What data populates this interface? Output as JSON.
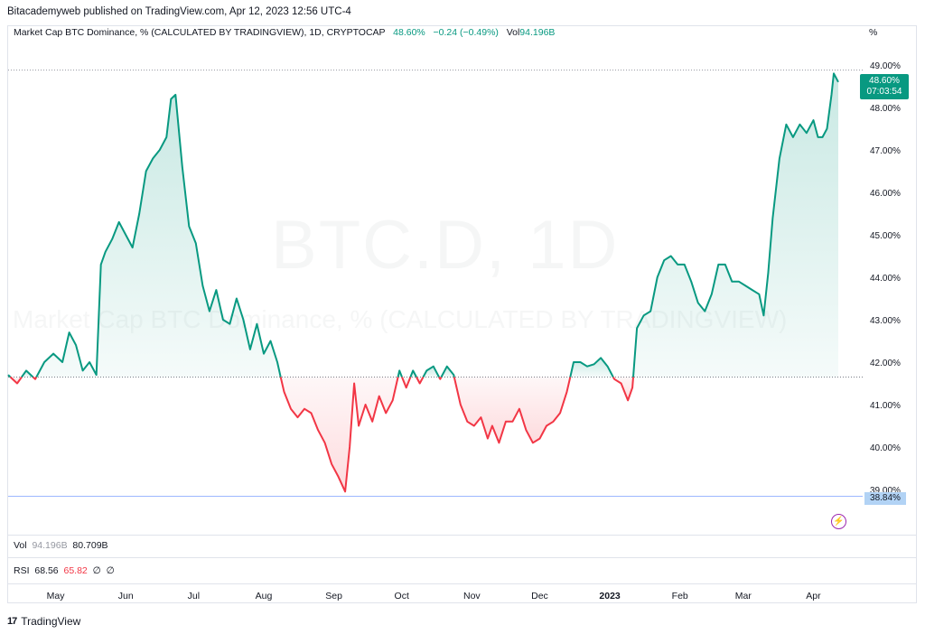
{
  "header": {
    "published": "Bitacademyweb published on TradingView.com, Apr 12, 2023 12:56 UTC-4"
  },
  "legend": {
    "title": "Market Cap BTC Dominance, % (CALCULATED BY TRADINGVIEW), 1D, CRYPTOCAP",
    "last": "48.60%",
    "change": "−0.24 (−0.49%)",
    "vol_label": "Vol",
    "vol_value": "94.196B"
  },
  "unit_label": "%",
  "watermark": {
    "symbol": "BTC.D, 1D",
    "description": "Market Cap BTC Dominance, % (CALCULATED BY TRADINGVIEW)"
  },
  "price_tag": {
    "value": "48.60%",
    "countdown": "07:03:54"
  },
  "low_tag": "38.84%",
  "volume_pane": {
    "label": "Vol",
    "value1": "94.196B",
    "value2": "80.709B"
  },
  "rsi_pane": {
    "label": "RSI",
    "value1": "68.56",
    "value2": "65.82",
    "value3": "∅",
    "value4": "∅"
  },
  "footer": {
    "brand": "TradingView"
  },
  "colors": {
    "up": "#089981",
    "down": "#f23645",
    "baseline": "#787b86"
  },
  "chart_data": {
    "type": "area",
    "baseline_value": 41.65,
    "ylim": [
      38.7,
      49.1
    ],
    "y_ticks": [
      "49.00%",
      "48.00%",
      "47.00%",
      "46.00%",
      "45.00%",
      "44.00%",
      "43.00%",
      "42.00%",
      "41.00%",
      "40.00%",
      "39.00%"
    ],
    "x_ticks": [
      "May",
      "Jun",
      "Jul",
      "Aug",
      "Sep",
      "Oct",
      "Nov",
      "Dec",
      "2023",
      "Feb",
      "Mar",
      "Apr"
    ],
    "x_start": "2022-04-10",
    "x_end": "2023-04-12",
    "points": [
      [
        "2022-04-10",
        41.7
      ],
      [
        "2022-04-14",
        41.5
      ],
      [
        "2022-04-18",
        41.8
      ],
      [
        "2022-04-22",
        41.6
      ],
      [
        "2022-04-26",
        42.0
      ],
      [
        "2022-04-30",
        42.2
      ],
      [
        "2022-05-04",
        42.0
      ],
      [
        "2022-05-07",
        42.7
      ],
      [
        "2022-05-10",
        42.4
      ],
      [
        "2022-05-13",
        41.8
      ],
      [
        "2022-05-16",
        42.0
      ],
      [
        "2022-05-19",
        41.7
      ],
      [
        "2022-05-21",
        44.3
      ],
      [
        "2022-05-23",
        44.6
      ],
      [
        "2022-05-26",
        44.9
      ],
      [
        "2022-05-29",
        45.3
      ],
      [
        "2022-06-01",
        45.0
      ],
      [
        "2022-06-04",
        44.7
      ],
      [
        "2022-06-07",
        45.5
      ],
      [
        "2022-06-10",
        46.5
      ],
      [
        "2022-06-13",
        46.8
      ],
      [
        "2022-06-16",
        47.0
      ],
      [
        "2022-06-19",
        47.3
      ],
      [
        "2022-06-21",
        48.2
      ],
      [
        "2022-06-23",
        48.3
      ],
      [
        "2022-06-26",
        46.6
      ],
      [
        "2022-06-29",
        45.2
      ],
      [
        "2022-07-02",
        44.8
      ],
      [
        "2022-07-05",
        43.8
      ],
      [
        "2022-07-08",
        43.2
      ],
      [
        "2022-07-11",
        43.7
      ],
      [
        "2022-07-14",
        43.0
      ],
      [
        "2022-07-17",
        42.9
      ],
      [
        "2022-07-20",
        43.5
      ],
      [
        "2022-07-23",
        43.0
      ],
      [
        "2022-07-26",
        42.3
      ],
      [
        "2022-07-29",
        42.9
      ],
      [
        "2022-08-01",
        42.2
      ],
      [
        "2022-08-04",
        42.5
      ],
      [
        "2022-08-07",
        42.0
      ],
      [
        "2022-08-10",
        41.3
      ],
      [
        "2022-08-13",
        40.9
      ],
      [
        "2022-08-16",
        40.7
      ],
      [
        "2022-08-19",
        40.9
      ],
      [
        "2022-08-22",
        40.8
      ],
      [
        "2022-08-25",
        40.4
      ],
      [
        "2022-08-28",
        40.1
      ],
      [
        "2022-08-31",
        39.6
      ],
      [
        "2022-09-03",
        39.3
      ],
      [
        "2022-09-06",
        38.95
      ],
      [
        "2022-09-08",
        40.0
      ],
      [
        "2022-09-10",
        41.5
      ],
      [
        "2022-09-12",
        40.5
      ],
      [
        "2022-09-15",
        41.0
      ],
      [
        "2022-09-18",
        40.6
      ],
      [
        "2022-09-21",
        41.2
      ],
      [
        "2022-09-24",
        40.8
      ],
      [
        "2022-09-27",
        41.1
      ],
      [
        "2022-09-30",
        41.8
      ],
      [
        "2022-10-03",
        41.4
      ],
      [
        "2022-10-06",
        41.8
      ],
      [
        "2022-10-09",
        41.5
      ],
      [
        "2022-10-12",
        41.8
      ],
      [
        "2022-10-15",
        41.9
      ],
      [
        "2022-10-18",
        41.6
      ],
      [
        "2022-10-21",
        41.9
      ],
      [
        "2022-10-24",
        41.7
      ],
      [
        "2022-10-27",
        41.0
      ],
      [
        "2022-10-30",
        40.6
      ],
      [
        "2022-11-02",
        40.5
      ],
      [
        "2022-11-05",
        40.7
      ],
      [
        "2022-11-08",
        40.2
      ],
      [
        "2022-11-10",
        40.5
      ],
      [
        "2022-11-13",
        40.1
      ],
      [
        "2022-11-16",
        40.6
      ],
      [
        "2022-11-19",
        40.6
      ],
      [
        "2022-11-22",
        40.9
      ],
      [
        "2022-11-25",
        40.4
      ],
      [
        "2022-11-28",
        40.1
      ],
      [
        "2022-12-01",
        40.2
      ],
      [
        "2022-12-04",
        40.5
      ],
      [
        "2022-12-07",
        40.6
      ],
      [
        "2022-12-10",
        40.8
      ],
      [
        "2022-12-13",
        41.3
      ],
      [
        "2022-12-16",
        42.0
      ],
      [
        "2022-12-19",
        42.0
      ],
      [
        "2022-12-22",
        41.9
      ],
      [
        "2022-12-25",
        41.95
      ],
      [
        "2022-12-28",
        42.1
      ],
      [
        "2022-12-31",
        41.9
      ],
      [
        "2023-01-03",
        41.6
      ],
      [
        "2023-01-06",
        41.5
      ],
      [
        "2023-01-09",
        41.1
      ],
      [
        "2023-01-11",
        41.4
      ],
      [
        "2023-01-13",
        42.8
      ],
      [
        "2023-01-16",
        43.1
      ],
      [
        "2023-01-19",
        43.2
      ],
      [
        "2023-01-22",
        44.0
      ],
      [
        "2023-01-25",
        44.4
      ],
      [
        "2023-01-28",
        44.5
      ],
      [
        "2023-01-31",
        44.3
      ],
      [
        "2023-02-03",
        44.3
      ],
      [
        "2023-02-06",
        43.9
      ],
      [
        "2023-02-09",
        43.4
      ],
      [
        "2023-02-12",
        43.2
      ],
      [
        "2023-02-15",
        43.6
      ],
      [
        "2023-02-18",
        44.3
      ],
      [
        "2023-02-21",
        44.3
      ],
      [
        "2023-02-24",
        43.9
      ],
      [
        "2023-02-27",
        43.9
      ],
      [
        "2023-03-02",
        43.8
      ],
      [
        "2023-03-05",
        43.7
      ],
      [
        "2023-03-08",
        43.6
      ],
      [
        "2023-03-10",
        43.1
      ],
      [
        "2023-03-12",
        44.1
      ],
      [
        "2023-03-14",
        45.4
      ],
      [
        "2023-03-17",
        46.8
      ],
      [
        "2023-03-20",
        47.6
      ],
      [
        "2023-03-23",
        47.3
      ],
      [
        "2023-03-26",
        47.6
      ],
      [
        "2023-03-29",
        47.4
      ],
      [
        "2023-04-01",
        47.7
      ],
      [
        "2023-04-03",
        47.3
      ],
      [
        "2023-04-05",
        47.3
      ],
      [
        "2023-04-07",
        47.5
      ],
      [
        "2023-04-09",
        48.3
      ],
      [
        "2023-04-10",
        48.8
      ],
      [
        "2023-04-12",
        48.6
      ]
    ]
  }
}
